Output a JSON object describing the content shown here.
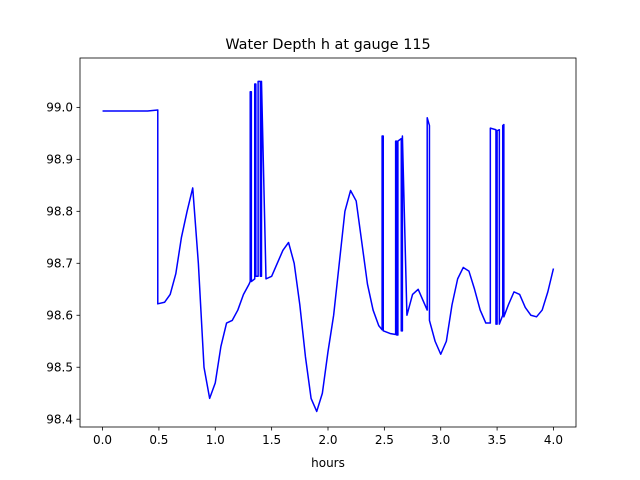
{
  "chart_data": {
    "type": "line",
    "title": "Water Depth h at gauge 115",
    "xlabel": "hours",
    "ylabel": "",
    "xlim": [
      -0.2,
      4.2
    ],
    "ylim": [
      98.385,
      99.095
    ],
    "xticks": [
      0.0,
      0.5,
      1.0,
      1.5,
      2.0,
      2.5,
      3.0,
      3.5,
      4.0
    ],
    "xtick_labels": [
      "0.0",
      "0.5",
      "1.0",
      "1.5",
      "2.0",
      "2.5",
      "3.0",
      "3.5",
      "4.0"
    ],
    "yticks": [
      98.4,
      98.5,
      98.6,
      98.7,
      98.8,
      98.9,
      99.0
    ],
    "ytick_labels": [
      "98.4",
      "98.5",
      "98.6",
      "98.7",
      "98.8",
      "98.9",
      "99.0"
    ],
    "grid": false,
    "series": [
      {
        "color": "#0000ff",
        "x": [
          0.0,
          0.1,
          0.2,
          0.3,
          0.4,
          0.49,
          0.49,
          0.55,
          0.6,
          0.65,
          0.7,
          0.75,
          0.8,
          0.85,
          0.9,
          0.95,
          1.0,
          1.05,
          1.1,
          1.15,
          1.2,
          1.25,
          1.3,
          1.31,
          1.31,
          1.32,
          1.32,
          1.35,
          1.35,
          1.36,
          1.36,
          1.38,
          1.38,
          1.4,
          1.4,
          1.41,
          1.41,
          1.45,
          1.5,
          1.55,
          1.6,
          1.65,
          1.7,
          1.75,
          1.8,
          1.85,
          1.9,
          1.95,
          2.0,
          2.05,
          2.1,
          2.15,
          2.2,
          2.25,
          2.3,
          2.35,
          2.4,
          2.45,
          2.48,
          2.48,
          2.49,
          2.49,
          2.55,
          2.6,
          2.6,
          2.61,
          2.61,
          2.62,
          2.62,
          2.65,
          2.65,
          2.66,
          2.66,
          2.7,
          2.75,
          2.8,
          2.85,
          2.88,
          2.88,
          2.9,
          2.9,
          2.95,
          3.0,
          3.05,
          3.1,
          3.15,
          3.2,
          3.25,
          3.3,
          3.35,
          3.4,
          3.44,
          3.44,
          3.49,
          3.49,
          3.5,
          3.5,
          3.52,
          3.52,
          3.55,
          3.55,
          3.56,
          3.56,
          3.6,
          3.65,
          3.7,
          3.75,
          3.8,
          3.85,
          3.9,
          3.95,
          4.0
        ],
        "y": [
          98.993,
          98.993,
          98.993,
          98.993,
          98.993,
          98.995,
          98.622,
          98.625,
          98.64,
          98.68,
          98.75,
          98.8,
          98.845,
          98.7,
          98.5,
          98.44,
          98.47,
          98.54,
          98.585,
          98.59,
          98.61,
          98.64,
          98.66,
          98.665,
          99.03,
          99.03,
          98.665,
          98.67,
          99.045,
          99.045,
          98.675,
          98.675,
          99.05,
          99.05,
          98.675,
          98.675,
          99.05,
          98.67,
          98.675,
          98.7,
          98.725,
          98.74,
          98.7,
          98.62,
          98.52,
          98.44,
          98.415,
          98.45,
          98.53,
          98.6,
          98.7,
          98.8,
          98.84,
          98.82,
          98.74,
          98.66,
          98.61,
          98.58,
          98.572,
          98.945,
          98.945,
          98.57,
          98.565,
          98.563,
          98.935,
          98.935,
          98.562,
          98.562,
          98.935,
          98.94,
          98.57,
          98.57,
          98.945,
          98.6,
          98.64,
          98.65,
          98.625,
          98.61,
          98.98,
          98.965,
          98.59,
          98.55,
          98.525,
          98.55,
          98.62,
          98.67,
          98.692,
          98.685,
          98.65,
          98.61,
          98.585,
          98.585,
          98.96,
          98.957,
          98.583,
          98.583,
          98.955,
          98.957,
          98.583,
          98.6,
          98.965,
          98.967,
          98.597,
          98.62,
          98.645,
          98.64,
          98.615,
          98.6,
          98.597,
          98.61,
          98.645,
          98.69
        ]
      }
    ]
  }
}
